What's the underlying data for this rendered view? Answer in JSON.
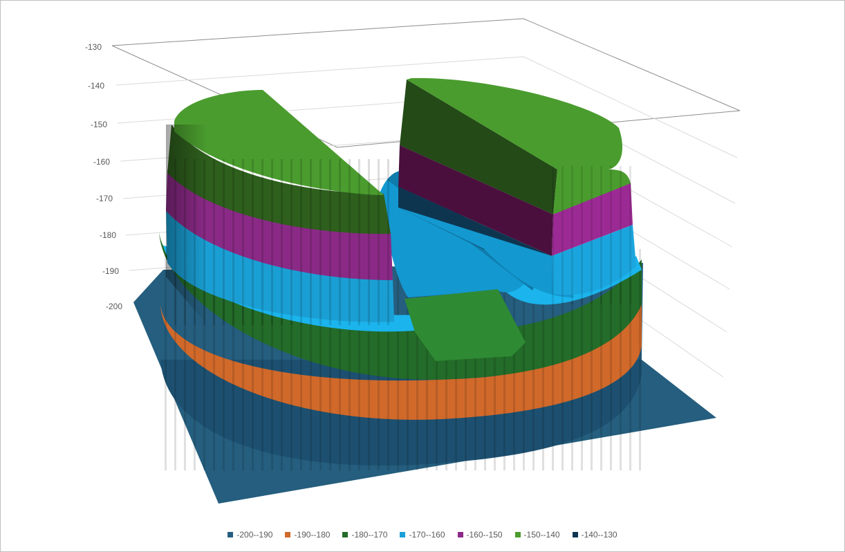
{
  "chart_data": {
    "type": "surface-3d",
    "title": "",
    "zlabel": "",
    "zlim": [
      -200,
      -130
    ],
    "z_ticks": [
      "-130",
      "-140",
      "-150",
      "-160",
      "-170",
      "-180",
      "-190",
      "-200"
    ],
    "gridlines": true,
    "legend_position": "bottom",
    "bands": [
      {
        "name": "-200--190",
        "color": "#255e7e"
      },
      {
        "name": "-190--180",
        "color": "#d0692a"
      },
      {
        "name": "-180--170",
        "color": "#236c29"
      },
      {
        "name": "-170--160",
        "color": "#1aa0d8"
      },
      {
        "name": "-160--150",
        "color": "#8c2a8a"
      },
      {
        "name": "-150--140",
        "color": "#4c9c2e"
      },
      {
        "name": "-140--130",
        "color": "#0e3550"
      }
    ]
  }
}
